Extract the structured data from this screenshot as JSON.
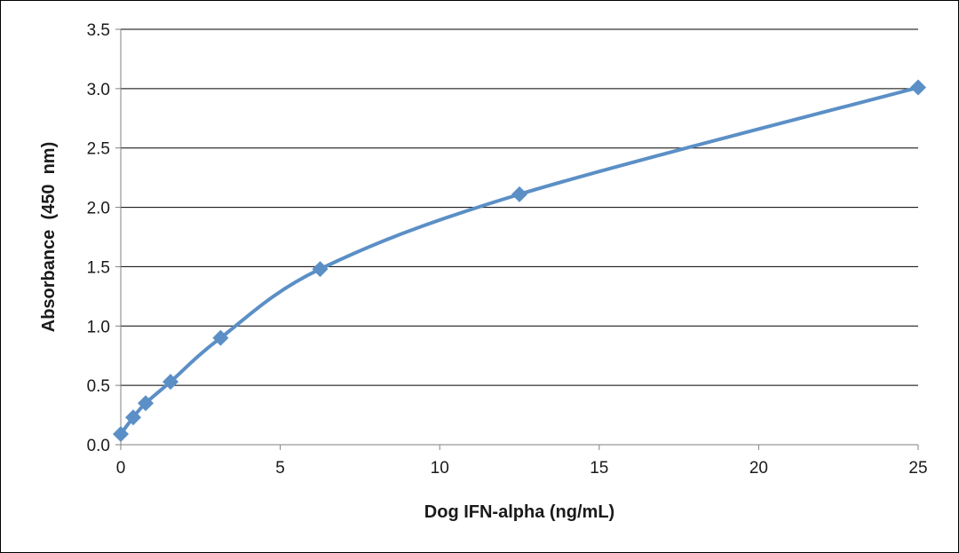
{
  "chart_data": {
    "type": "scatter",
    "title": "",
    "xlabel": "Dog IFN-alpha (ng/mL)",
    "ylabel": "Absorbance  (450  nm)",
    "xlim": [
      0,
      25
    ],
    "ylim": [
      0,
      3.5
    ],
    "xticks": [
      "0",
      "5",
      "10",
      "15",
      "20",
      "25"
    ],
    "yticks": [
      "0.0",
      "0.5",
      "1.0",
      "1.5",
      "2.0",
      "2.5",
      "3.0",
      "3.5"
    ],
    "grid": "horizontal",
    "legend": "none",
    "line_style": "smoothed",
    "colors": {
      "series": "#5b8fc6",
      "grid": "#000000",
      "axis": "#808080"
    },
    "series": [
      {
        "x": [
          0,
          0.39,
          0.78,
          1.56,
          3.13,
          6.25,
          12.5,
          25
        ],
        "y": [
          0.09,
          0.23,
          0.35,
          0.53,
          0.9,
          1.48,
          2.11,
          3.01
        ]
      }
    ]
  }
}
